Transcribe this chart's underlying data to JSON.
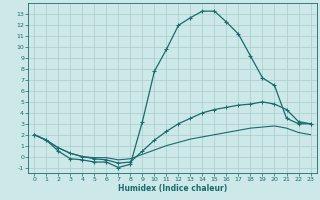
{
  "title": "",
  "xlabel": "Humidex (Indice chaleur)",
  "bg_color": "#cce8e8",
  "grid_color": "#aacccc",
  "line_color": "#1a6b6b",
  "xlim": [
    -0.5,
    23.5
  ],
  "ylim": [
    -1.5,
    14.0
  ],
  "xticks": [
    0,
    1,
    2,
    3,
    4,
    5,
    6,
    7,
    8,
    9,
    10,
    11,
    12,
    13,
    14,
    15,
    16,
    17,
    18,
    19,
    20,
    21,
    22,
    23
  ],
  "yticks": [
    -1,
    0,
    1,
    2,
    3,
    4,
    5,
    6,
    7,
    8,
    9,
    10,
    11,
    12,
    13
  ],
  "line_upper_x": [
    0,
    1,
    2,
    3,
    4,
    5,
    6,
    7,
    8,
    9,
    10,
    11,
    12,
    13,
    14,
    15,
    16,
    17,
    18,
    19,
    20,
    21,
    22,
    23
  ],
  "line_upper_y": [
    2.0,
    1.5,
    0.5,
    -0.2,
    -0.3,
    -0.5,
    -0.5,
    -1.0,
    -0.7,
    3.2,
    7.8,
    9.8,
    12.0,
    12.7,
    13.3,
    13.3,
    12.3,
    11.2,
    9.2,
    7.2,
    6.5,
    3.5,
    3.0,
    3.0
  ],
  "line_mid_x": [
    0,
    1,
    2,
    3,
    4,
    5,
    6,
    7,
    8,
    9,
    10,
    11,
    12,
    13,
    14,
    15,
    16,
    17,
    18,
    19,
    20,
    21,
    22,
    23
  ],
  "line_mid_y": [
    2.0,
    1.5,
    0.8,
    0.3,
    0.0,
    -0.2,
    -0.3,
    -0.6,
    -0.5,
    0.5,
    1.5,
    2.3,
    3.0,
    3.5,
    4.0,
    4.3,
    4.5,
    4.7,
    4.8,
    5.0,
    4.8,
    4.3,
    3.2,
    3.0
  ],
  "line_low_x": [
    0,
    1,
    2,
    3,
    4,
    5,
    6,
    7,
    8,
    9,
    10,
    11,
    12,
    13,
    14,
    15,
    16,
    17,
    18,
    19,
    20,
    21,
    22,
    23
  ],
  "line_low_y": [
    2.0,
    1.5,
    0.8,
    0.3,
    0.0,
    -0.1,
    -0.1,
    -0.3,
    -0.2,
    0.2,
    0.6,
    1.0,
    1.3,
    1.6,
    1.8,
    2.0,
    2.2,
    2.4,
    2.6,
    2.7,
    2.8,
    2.6,
    2.2,
    2.0
  ]
}
